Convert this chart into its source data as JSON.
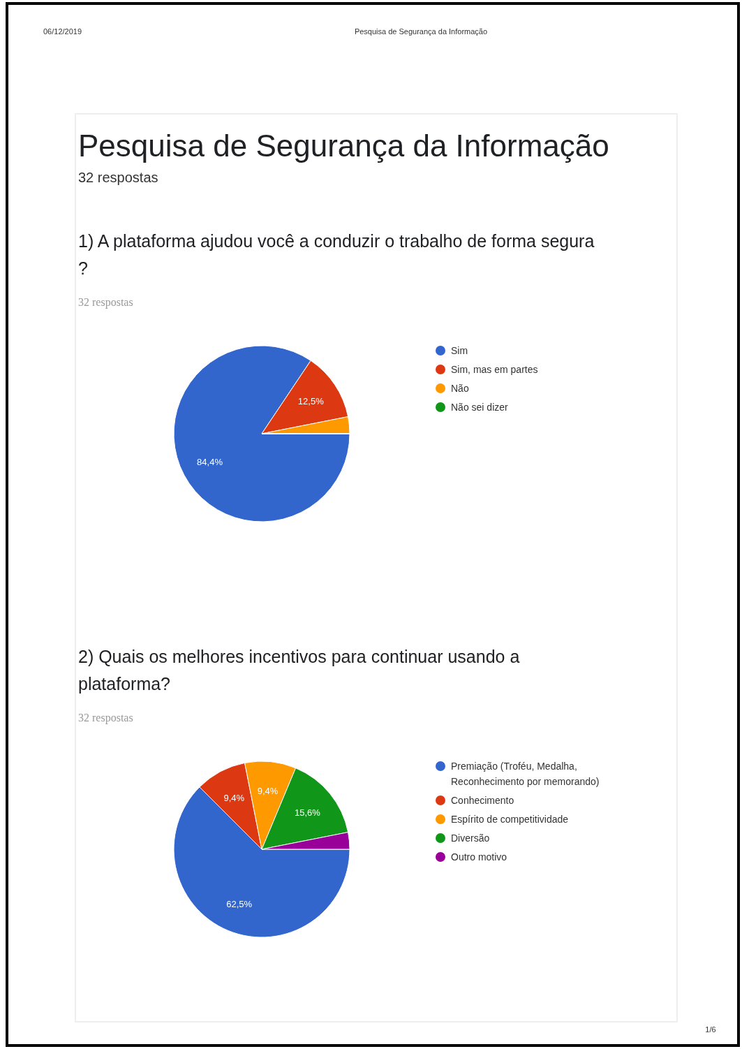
{
  "chart_data": [
    {
      "type": "pie",
      "title": "1) A plataforma ajudou você a conduzir o trabalho de forma segura ?",
      "subtitle": "32 respostas",
      "categories": [
        "Sim",
        "Sim, mas em partes",
        "Não",
        "Não sei dizer"
      ],
      "values": [
        84.4,
        12.5,
        3.1,
        0
      ],
      "colors": [
        "#3366cc",
        "#dc3912",
        "#ff9900",
        "#109618"
      ],
      "value_labels": [
        "84,4%",
        "12,5%",
        null,
        null
      ],
      "legend": "right",
      "annotations": [
        "06/12/2019",
        "Pesquisa de Segurança da Informação",
        "Pesquisa de Segurança da Informação",
        "32 respostas",
        "1/6"
      ]
    },
    {
      "type": "pie",
      "title": "2) Quais os melhores incentivos para continuar usando a plataforma?",
      "subtitle": "32 respostas",
      "categories": [
        "Premiação (Troféu, Medalha, Reconhecimento por memorando)",
        "Conhecimento",
        "Espírito de competitividade",
        "Diversão",
        "Outro motivo"
      ],
      "values": [
        62.5,
        9.4,
        9.4,
        15.6,
        3.1
      ],
      "colors": [
        "#3366cc",
        "#dc3912",
        "#ff9900",
        "#109618",
        "#990099"
      ],
      "value_labels": [
        "62,5%",
        "9,4%",
        "9,4%",
        "15,6%",
        null
      ],
      "legend": "right"
    }
  ]
}
